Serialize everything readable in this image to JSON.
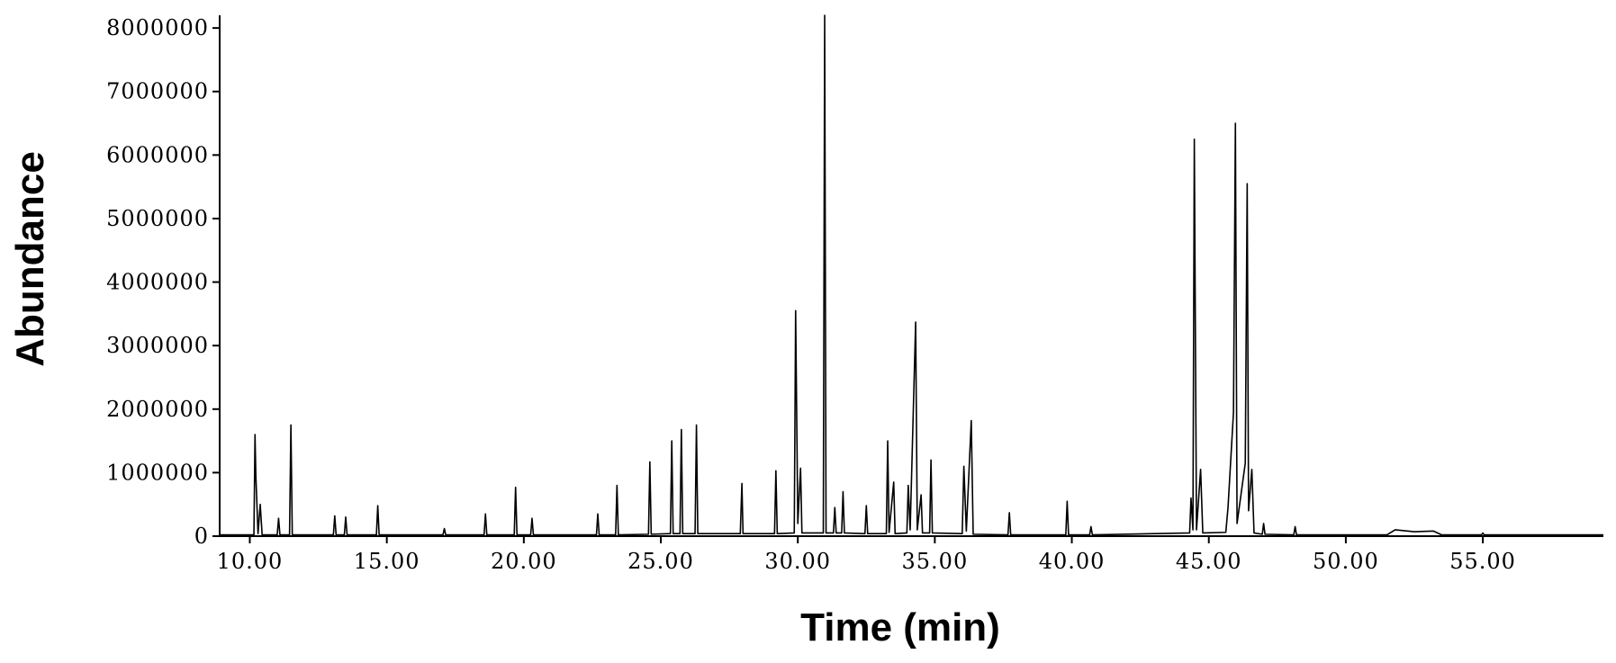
{
  "chart_data": {
    "type": "line",
    "x_label": "Time (min)",
    "y_label": "Abundance",
    "xlim": [
      8.9,
      59.4
    ],
    "ylim": [
      0,
      8200000
    ],
    "xticks": [
      {
        "value": 10,
        "label": "10.00"
      },
      {
        "value": 15,
        "label": "15.00"
      },
      {
        "value": 20,
        "label": "20.00"
      },
      {
        "value": 25,
        "label": "25.00"
      },
      {
        "value": 30,
        "label": "30.00"
      },
      {
        "value": 35,
        "label": "35.00"
      },
      {
        "value": 40,
        "label": "40.00"
      },
      {
        "value": 45,
        "label": "45.00"
      },
      {
        "value": 50,
        "label": "50.00"
      },
      {
        "value": 55,
        "label": "55.00"
      }
    ],
    "yticks": [
      0,
      1000000,
      2000000,
      3000000,
      4000000,
      5000000,
      6000000,
      7000000,
      8000000
    ],
    "color": "#000000",
    "x": [
      8.9,
      10.15,
      10.19,
      10.22,
      10.3,
      10.38,
      10.45,
      11.0,
      11.05,
      11.1,
      11.45,
      11.5,
      11.55,
      13.05,
      13.1,
      13.15,
      13.45,
      13.5,
      13.55,
      14.62,
      14.67,
      14.72,
      17.05,
      17.1,
      17.15,
      18.55,
      18.6,
      18.65,
      19.65,
      19.7,
      19.75,
      20.25,
      20.3,
      20.35,
      22.65,
      22.7,
      22.75,
      23.35,
      23.4,
      23.45,
      24.55,
      24.6,
      24.65,
      25.35,
      25.4,
      25.45,
      25.7,
      25.75,
      25.8,
      26.25,
      26.3,
      26.35,
      27.9,
      27.96,
      28.0,
      29.15,
      29.2,
      29.25,
      29.87,
      29.92,
      30.0,
      30.1,
      30.15,
      30.93,
      30.98,
      31.03,
      31.3,
      31.35,
      31.4,
      31.6,
      31.65,
      31.7,
      32.45,
      32.5,
      32.55,
      33.23,
      33.28,
      33.33,
      33.5,
      33.55,
      33.98,
      34.03,
      34.1,
      34.3,
      34.36,
      34.5,
      34.55,
      34.81,
      34.86,
      34.91,
      36.0,
      36.06,
      36.15,
      36.33,
      36.4,
      37.67,
      37.72,
      37.77,
      39.78,
      39.83,
      39.88,
      40.65,
      40.7,
      40.75,
      44.3,
      44.35,
      44.42,
      44.47,
      44.55,
      44.7,
      44.78,
      45.62,
      45.7,
      45.9,
      45.97,
      46.03,
      46.33,
      46.4,
      46.45,
      46.57,
      46.65,
      46.95,
      47.0,
      47.05,
      48.1,
      48.15,
      48.2,
      51.5,
      51.8,
      52.5,
      53.2,
      53.5,
      54.95,
      55.0,
      55.05,
      59.4
    ],
    "values": [
      20000,
      20000,
      1600000,
      950000,
      40000,
      500000,
      20000,
      20000,
      280000,
      20000,
      20000,
      1750000,
      20000,
      20000,
      320000,
      20000,
      20000,
      300000,
      20000,
      20000,
      480000,
      20000,
      20000,
      120000,
      20000,
      20000,
      350000,
      20000,
      20000,
      770000,
      20000,
      20000,
      280000,
      20000,
      20000,
      350000,
      20000,
      20000,
      800000,
      20000,
      30000,
      1170000,
      30000,
      40000,
      1500000,
      40000,
      40000,
      1680000,
      40000,
      40000,
      1750000,
      40000,
      40000,
      830000,
      40000,
      40000,
      1030000,
      40000,
      50000,
      3550000,
      200000,
      1070000,
      50000,
      50000,
      8200000,
      50000,
      50000,
      450000,
      50000,
      50000,
      700000,
      50000,
      40000,
      480000,
      40000,
      40000,
      1500000,
      60000,
      850000,
      40000,
      50000,
      800000,
      100000,
      3370000,
      100000,
      650000,
      50000,
      50000,
      1200000,
      50000,
      40000,
      1100000,
      80000,
      1820000,
      30000,
      20000,
      370000,
      20000,
      20000,
      550000,
      20000,
      20000,
      150000,
      20000,
      50000,
      600000,
      100000,
      6250000,
      100000,
      1050000,
      50000,
      60000,
      450000,
      1950000,
      6500000,
      200000,
      1150000,
      5550000,
      400000,
      1050000,
      50000,
      30000,
      200000,
      30000,
      20000,
      150000,
      20000,
      20000,
      100000,
      70000,
      80000,
      20000,
      20000,
      50000,
      20000,
      20000
    ]
  }
}
